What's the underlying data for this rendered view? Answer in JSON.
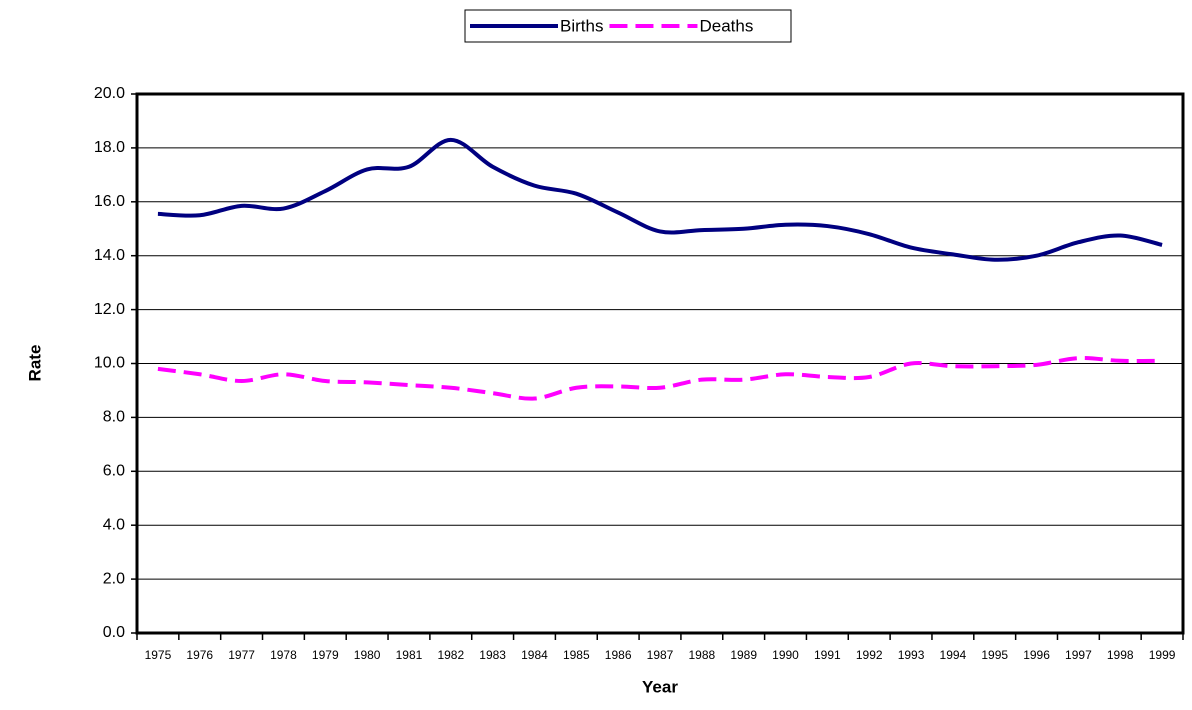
{
  "chart_data": {
    "type": "line",
    "xlabel": "Year",
    "ylabel": "Rate",
    "categories": [
      "1975",
      "1976",
      "1977",
      "1978",
      "1979",
      "1980",
      "1981",
      "1982",
      "1983",
      "1984",
      "1985",
      "1986",
      "1987",
      "1988",
      "1989",
      "1990",
      "1991",
      "1992",
      "1993",
      "1994",
      "1995",
      "1996",
      "1997",
      "1998",
      "1999"
    ],
    "series": [
      {
        "name": "Births",
        "color": "#000080",
        "dashed": false,
        "values": [
          15.55,
          15.5,
          15.85,
          15.75,
          16.4,
          17.2,
          17.3,
          18.3,
          17.3,
          16.6,
          16.3,
          15.6,
          14.9,
          14.95,
          15.0,
          15.15,
          15.1,
          14.8,
          14.3,
          14.05,
          13.85,
          14.0,
          14.5,
          14.75,
          14.4
        ]
      },
      {
        "name": "Deaths",
        "color": "#ff00ff",
        "dashed": true,
        "values": [
          9.8,
          9.6,
          9.35,
          9.6,
          9.35,
          9.3,
          9.2,
          9.1,
          8.9,
          8.7,
          9.1,
          9.15,
          9.1,
          9.4,
          9.4,
          9.6,
          9.5,
          9.5,
          10.0,
          9.9,
          9.9,
          9.95,
          10.2,
          10.1,
          10.1
        ]
      }
    ],
    "ylim": [
      0,
      20
    ],
    "yticks": [
      {
        "value": 0,
        "label": "0.0"
      },
      {
        "value": 2,
        "label": "2.0"
      },
      {
        "value": 4,
        "label": "4.0"
      },
      {
        "value": 6,
        "label": "6.0"
      },
      {
        "value": 8,
        "label": "8.0"
      },
      {
        "value": 10,
        "label": "10.0"
      },
      {
        "value": 12,
        "label": "12.0"
      },
      {
        "value": 14,
        "label": "14.0"
      },
      {
        "value": 16,
        "label": "16.0"
      },
      {
        "value": 18,
        "label": "18.0"
      },
      {
        "value": 20,
        "label": "20.0"
      }
    ],
    "grid": true,
    "legend": "top"
  }
}
